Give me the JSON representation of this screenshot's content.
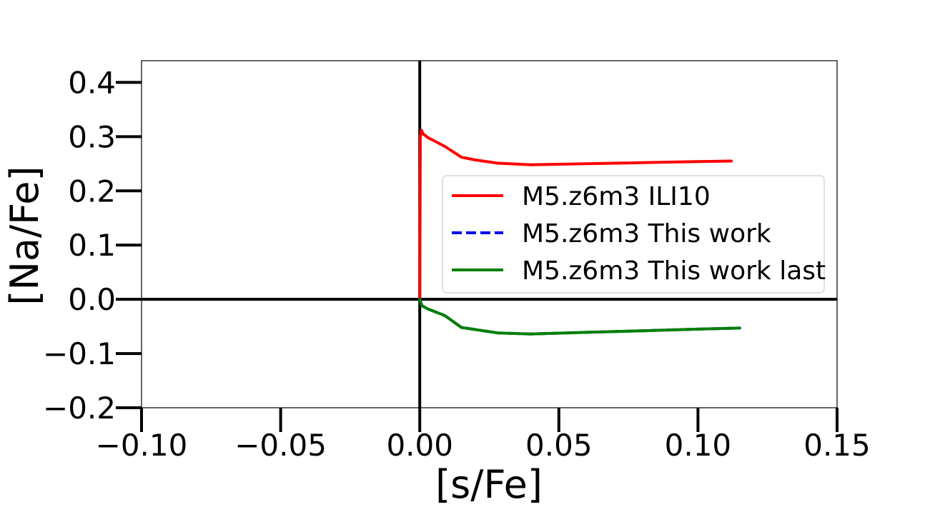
{
  "chart_data": {
    "type": "line",
    "title": "",
    "xlabel": "[s/Fe]",
    "ylabel": "[Na/Fe]",
    "xlim": [
      -0.1,
      0.15
    ],
    "ylim": [
      -0.2,
      0.44
    ],
    "xticks": [
      -0.1,
      -0.05,
      0.0,
      0.05,
      0.1,
      0.15
    ],
    "xtick_labels": [
      "−0.10",
      "−0.05",
      "0.00",
      "0.05",
      "0.10",
      "0.15"
    ],
    "yticks": [
      -0.2,
      -0.1,
      0.0,
      0.1,
      0.2,
      0.3,
      0.4
    ],
    "ytick_labels": [
      "−0.2",
      "−0.1",
      "0.0",
      "0.1",
      "0.2",
      "0.3",
      "0.4"
    ],
    "grid": false,
    "reference_lines": {
      "x0": true,
      "y0": true
    },
    "legend_position": "center-right",
    "series": [
      {
        "name": "M5.z6m3 ILI10",
        "color": "#ff0000",
        "style": "solid",
        "x": [
          0.0,
          0.0002,
          0.0006,
          0.0012,
          0.003,
          0.006,
          0.009,
          0.012,
          0.015,
          0.02,
          0.028,
          0.04,
          0.06,
          0.08,
          0.1,
          0.112
        ],
        "y": [
          0.0,
          0.3,
          0.312,
          0.305,
          0.298,
          0.29,
          0.282,
          0.272,
          0.262,
          0.257,
          0.251,
          0.248,
          0.25,
          0.252,
          0.254,
          0.255
        ]
      },
      {
        "name": "M5.z6m3 This work",
        "color": "#0000ff",
        "style": "dashed",
        "x": [
          0.0,
          0.0008,
          0.003,
          0.009,
          0.015,
          0.028,
          0.04,
          0.06,
          0.08,
          0.1,
          0.115
        ],
        "y": [
          0.0,
          -0.012,
          -0.018,
          -0.03,
          -0.052,
          -0.062,
          -0.064,
          -0.061,
          -0.058,
          -0.055,
          -0.053
        ]
      },
      {
        "name": "M5.z6m3 This work last",
        "color": "#008000",
        "style": "solid",
        "x": [
          0.0,
          0.0008,
          0.003,
          0.009,
          0.015,
          0.028,
          0.04,
          0.06,
          0.08,
          0.1,
          0.115
        ],
        "y": [
          0.0,
          -0.012,
          -0.018,
          -0.03,
          -0.052,
          -0.062,
          -0.064,
          -0.061,
          -0.058,
          -0.055,
          -0.053
        ]
      }
    ]
  }
}
